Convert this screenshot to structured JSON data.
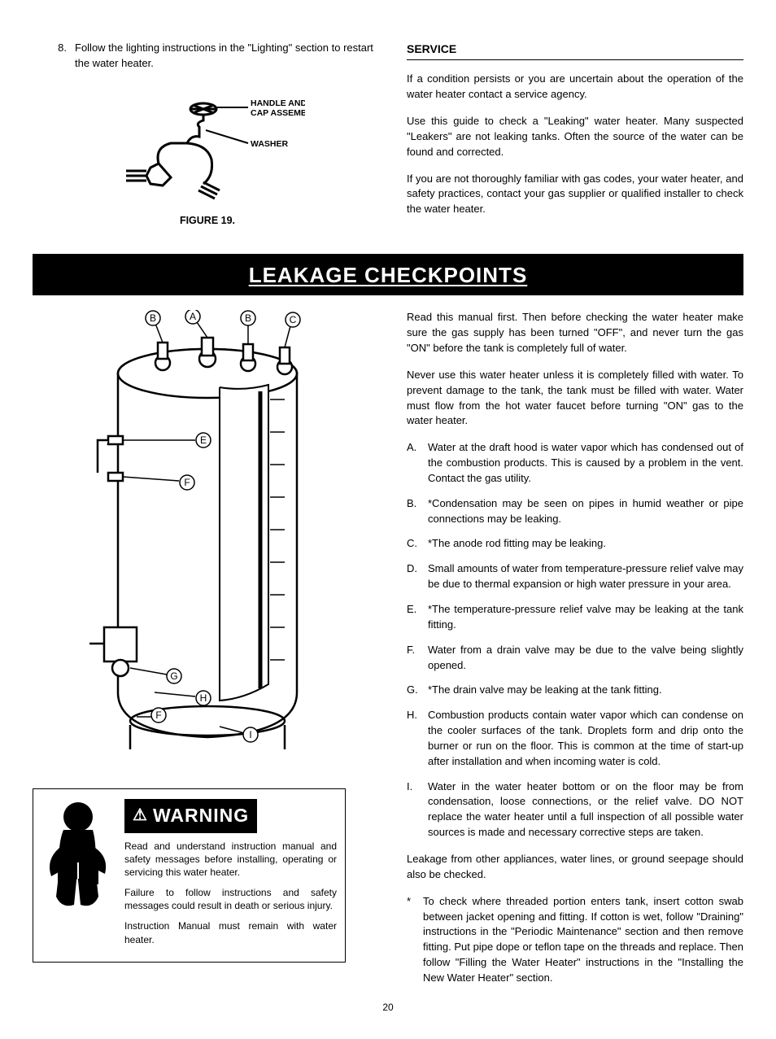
{
  "top": {
    "step_num": "8.",
    "step_text": "Follow the lighting instructions in the \"Lighting\" section to restart the water heater.",
    "figure_caption": "FIGURE  19.",
    "valve_label1": "HANDLE AND",
    "valve_label2": "CAP ASSEMBLY",
    "valve_label3": "WASHER"
  },
  "service": {
    "heading": "SERVICE",
    "p1": "If a condition persists or you are uncertain about the operation of the water heater contact a service agency.",
    "p2": "Use this guide to check a \"Leaking\" water heater.  Many suspected \"Leakers\" are not leaking tanks.  Often the source of the water can be found and corrected.",
    "p3": "If you are not thoroughly familiar with gas codes, your water heater, and safety practices, contact your gas supplier or qualified installer to check the water heater."
  },
  "banner": "LEAKAGE CHECKPOINTS",
  "leak": {
    "intro1": "Read this manual first.  Then before checking the water heater make sure the gas supply has been turned \"OFF\", and never turn the gas \"ON\" before the tank is completely full of water.",
    "intro2": "Never use this water heater unless it is completely filled with water. To prevent damage to the tank, the tank must be filled with water. Water must flow from the hot water faucet before turning \"ON\" gas to the water heater.",
    "items": [
      {
        "k": "A.",
        "t": "Water at the draft hood is water vapor which has condensed out of the combustion products.  This is caused by a problem in the vent.  Contact the gas utility."
      },
      {
        "k": "B.",
        "t": "*Condensation may be seen on pipes in humid weather or pipe connections may be leaking."
      },
      {
        "k": "C.",
        "t": "*The anode rod fitting may be leaking."
      },
      {
        "k": "D.",
        "t": "Small amounts of water from temperature-pressure relief valve may be due to thermal expansion or high water pressure in your area."
      },
      {
        "k": "E.",
        "t": "*The temperature-pressure relief valve may be leaking at the tank fitting."
      },
      {
        "k": "F.",
        "t": "Water from a drain valve may be due to the valve being slightly opened."
      },
      {
        "k": "G.",
        "t": "*The drain valve may be leaking at the tank fitting."
      },
      {
        "k": "H.",
        "t": "Combustion products contain water vapor which can condense on the cooler surfaces of the tank.  Droplets form and drip onto the burner or run on the floor.  This is common at the time of start-up after installation and when incoming water is cold."
      },
      {
        "k": "I.",
        "t": "Water in the water heater bottom or on the floor may be from condensation, loose connections, or the relief valve.  DO NOT replace the water heater until a full inspection of all possible water sources is made and necessary corrective steps are taken."
      }
    ],
    "after": "Leakage from other appliances, water lines, or ground seepage should also be checked.",
    "foot_k": "*",
    "foot_t": "To check where threaded portion enters tank, insert cotton swab between jacket opening and fitting.  If cotton is wet, follow \"Draining\" instructions in the \"Periodic Maintenance\" section and then remove fitting.  Put pipe dope or teflon tape on the threads and replace.  Then follow \"Filling the Water Heater\" instructions in the \"Installing the New Water Heater\" section."
  },
  "warning": {
    "header": "WARNING",
    "p1": "Read and understand instruction manual and safety messages before installing, operating or servicing this water heater.",
    "p2": "Failure to follow instructions and safety messages could result in death or serious injury.",
    "p3": "Instruction Manual must remain with water heater."
  },
  "diagram_points": {
    "A": "A",
    "B": "B",
    "C": "C",
    "E": "E",
    "F": "F",
    "G": "G",
    "H": "H",
    "I": "I"
  },
  "page_num": "20"
}
